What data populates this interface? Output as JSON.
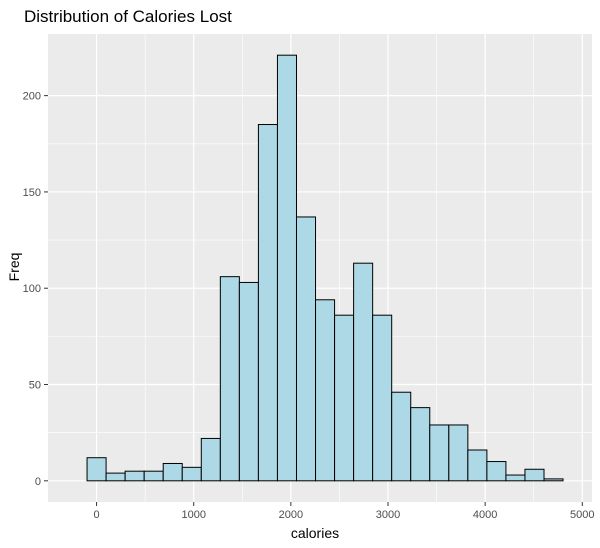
{
  "chart_data": {
    "type": "bar",
    "title": "Distribution of Calories Lost",
    "xlabel": "calories",
    "ylabel": "Freq",
    "bin_width": 196,
    "bins": [
      {
        "x": 0,
        "count": 12
      },
      {
        "x": 196,
        "count": 4
      },
      {
        "x": 392,
        "count": 5
      },
      {
        "x": 588,
        "count": 5
      },
      {
        "x": 784,
        "count": 9
      },
      {
        "x": 980,
        "count": 7
      },
      {
        "x": 1176,
        "count": 22
      },
      {
        "x": 1372,
        "count": 106
      },
      {
        "x": 1568,
        "count": 103
      },
      {
        "x": 1764,
        "count": 185
      },
      {
        "x": 1960,
        "count": 221
      },
      {
        "x": 2156,
        "count": 137
      },
      {
        "x": 2352,
        "count": 94
      },
      {
        "x": 2548,
        "count": 86
      },
      {
        "x": 2744,
        "count": 113
      },
      {
        "x": 2940,
        "count": 86
      },
      {
        "x": 3136,
        "count": 46
      },
      {
        "x": 3332,
        "count": 38
      },
      {
        "x": 3528,
        "count": 29
      },
      {
        "x": 3724,
        "count": 29
      },
      {
        "x": 3920,
        "count": 16
      },
      {
        "x": 4116,
        "count": 10
      },
      {
        "x": 4312,
        "count": 3
      },
      {
        "x": 4508,
        "count": 6
      },
      {
        "x": 4704,
        "count": 1
      }
    ],
    "xlim": [
      -500,
      5100
    ],
    "ylim": [
      -11,
      232
    ],
    "x_ticks": [
      0,
      1000,
      2000,
      3000,
      4000,
      5000
    ],
    "y_ticks": [
      0,
      50,
      100,
      150,
      200
    ],
    "grid": true,
    "colors": {
      "fill": "#add8e6",
      "outline": "#000000",
      "panel": "#ebebeb",
      "grid": "#ffffff"
    }
  }
}
